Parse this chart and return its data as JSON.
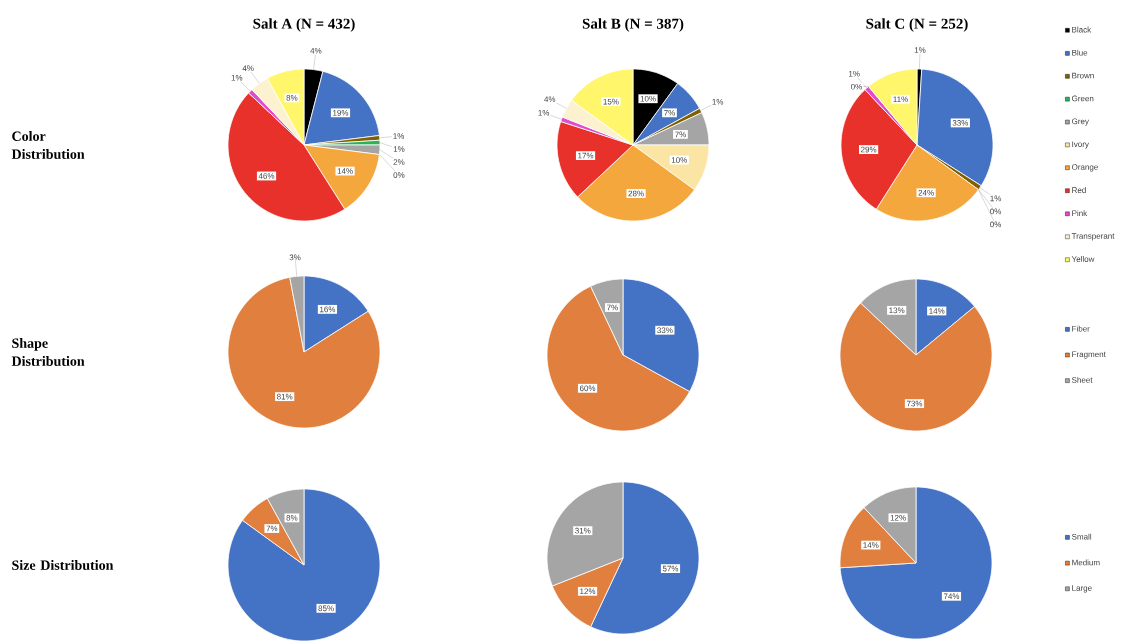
{
  "chart_data": [
    {
      "type": "pie",
      "title": "Salt A (N = 432)",
      "ylabel": "Color Distribution",
      "categories": [
        null,
        null,
        null,
        null,
        null,
        null,
        null,
        null,
        null,
        null,
        null
      ],
      "values": [
        4,
        19,
        1,
        1,
        2,
        0,
        14,
        46,
        1,
        4,
        8
      ],
      "colors": [
        "#000000",
        "#4472c4",
        "#806000",
        "#2fb15b",
        "#a5a5a5",
        "#fbe5a5",
        "#f4a73c",
        "#e8312a",
        "#e04ccc",
        "#fdf2d0",
        "#fff66b"
      ],
      "value_labels": [
        "4%",
        "19%",
        "1%",
        "1%",
        "2%",
        "0%",
        "14%",
        "46%",
        "1%",
        "4%",
        "8%"
      ]
    },
    {
      "type": "pie",
      "title": "Salt B (N = 387)",
      "categories": [
        null,
        null,
        null,
        null,
        null,
        null,
        null,
        null,
        null,
        null,
        null
      ],
      "values": [
        10,
        7,
        1,
        0,
        7,
        10,
        28,
        17,
        1,
        4,
        15
      ],
      "colors": [
        "#000000",
        "#4472c4",
        "#806000",
        "#2fb15b",
        "#a5a5a5",
        "#fbe5a5",
        "#f4a73c",
        "#e8312a",
        "#e04ccc",
        "#fdf2d0",
        "#fff66b"
      ],
      "value_labels": [
        "10%",
        "7%",
        "1%",
        null,
        "7%",
        "10%",
        "28%",
        "17%",
        "1%",
        "4%",
        "15%"
      ]
    },
    {
      "type": "pie",
      "title": "Salt C (N = 252)",
      "categories": [
        "Black",
        "Blue",
        "Brown",
        "Green",
        "Grey",
        "Ivory",
        "Orange",
        "Red",
        "Pink",
        "Transperant",
        "Yellow"
      ],
      "values": [
        1,
        33,
        1,
        0,
        0,
        0,
        24,
        29,
        1,
        0,
        11
      ],
      "colors": [
        "#000000",
        "#4472c4",
        "#806000",
        "#2fb15b",
        "#a5a5a5",
        "#fbe5a5",
        "#f4a73c",
        "#e8312a",
        "#e04ccc",
        "#fdf2d0",
        "#fff66b"
      ],
      "value_labels": [
        "1%",
        "33%",
        "1%",
        "0%",
        "0%",
        null,
        "24%",
        "29%",
        "1%",
        "0%",
        "11%"
      ],
      "legend": "right"
    },
    {
      "type": "pie",
      "ylabel": "Shape Distribution",
      "categories": [
        null,
        null,
        null
      ],
      "values": [
        16,
        81,
        3
      ],
      "colors": [
        "#4472c4",
        "#e07f3e",
        "#a5a5a5"
      ],
      "value_labels": [
        "16%",
        "81%",
        "3%"
      ]
    },
    {
      "type": "pie",
      "categories": [
        null,
        null,
        null
      ],
      "values": [
        33,
        60,
        7
      ],
      "colors": [
        "#4472c4",
        "#e07f3e",
        "#a5a5a5"
      ],
      "value_labels": [
        "33%",
        "60%",
        "7%"
      ]
    },
    {
      "type": "pie",
      "categories": [
        "Fiber",
        "Fragment",
        "Sheet"
      ],
      "values": [
        14,
        73,
        13
      ],
      "colors": [
        "#4472c4",
        "#e07f3e",
        "#a5a5a5"
      ],
      "value_labels": [
        "14%",
        "73%",
        "13%"
      ],
      "legend": "right"
    },
    {
      "type": "pie",
      "ylabel": "Size Distribution",
      "categories": [
        null,
        null,
        null
      ],
      "values": [
        85,
        7,
        8
      ],
      "colors": [
        "#4472c4",
        "#e07f3e",
        "#a5a5a5"
      ],
      "value_labels": [
        "85%",
        "7%",
        "8%"
      ]
    },
    {
      "type": "pie",
      "categories": [
        null,
        null,
        null
      ],
      "values": [
        57,
        12,
        31
      ],
      "colors": [
        "#4472c4",
        "#e07f3e",
        "#a5a5a5"
      ],
      "value_labels": [
        "57%",
        "12%",
        "31%"
      ]
    },
    {
      "type": "pie",
      "categories": [
        "Small",
        "Medium",
        "Large"
      ],
      "values": [
        74,
        14,
        12
      ],
      "colors": [
        "#4472c4",
        "#e07f3e",
        "#a5a5a5"
      ],
      "value_labels": [
        "74%",
        "14%",
        "12%"
      ],
      "legend": "right"
    }
  ]
}
